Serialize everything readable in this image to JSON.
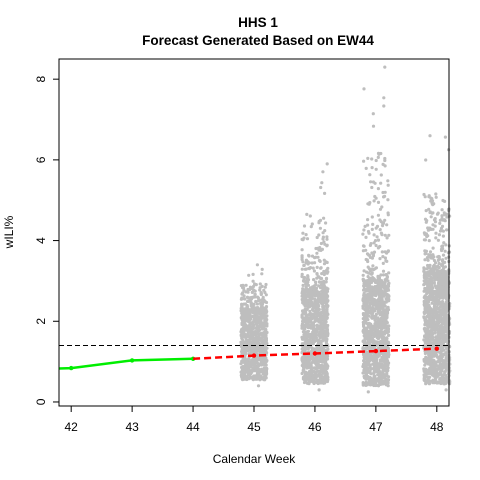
{
  "chart_data": {
    "type": "scatter",
    "title": "HHS 1",
    "subtitle": "Forecast Generated Based on EW44",
    "xlabel": "Calendar Week",
    "ylabel": "wILI%",
    "xlim": [
      41.8,
      48.2
    ],
    "ylim": [
      -0.1,
      8.5
    ],
    "x_ticks": [
      42,
      43,
      44,
      45,
      46,
      47,
      48
    ],
    "y_ticks": [
      0,
      2,
      4,
      6,
      8
    ],
    "grid": false,
    "baseline": 1.4,
    "series": [
      {
        "kind": "observed",
        "color": "#00ee00",
        "x": [
          41.8,
          42,
          43,
          44
        ],
        "y": [
          0.83,
          0.84,
          1.03,
          1.07
        ]
      },
      {
        "kind": "forecast-median",
        "color": "#ff0000",
        "x": [
          44,
          45,
          46,
          47,
          48
        ],
        "y": [
          1.07,
          1.15,
          1.2,
          1.26,
          1.32
        ]
      }
    ],
    "simulations": {
      "color": "#bebebe",
      "weeks": [
        {
          "week": 45,
          "min": 0.4,
          "max": 3.4,
          "bulk_top": 2.3,
          "count": 900
        },
        {
          "week": 46,
          "min": 0.3,
          "max": 5.9,
          "bulk_top": 2.8,
          "count": 1100
        },
        {
          "week": 47,
          "min": 0.25,
          "max": 8.3,
          "bulk_top": 3.0,
          "count": 1200
        },
        {
          "week": 48,
          "min": 0.3,
          "max": 6.6,
          "bulk_top": 3.2,
          "count": 1300
        }
      ]
    }
  }
}
